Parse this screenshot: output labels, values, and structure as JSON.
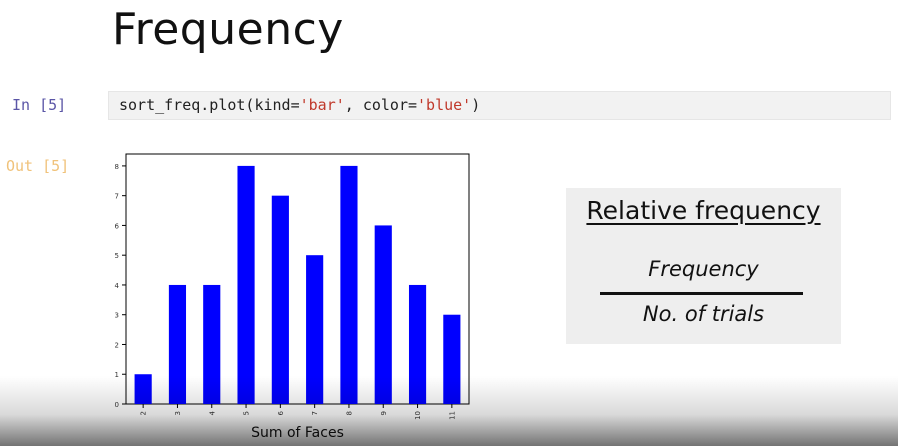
{
  "slide": {
    "title": "Frequency"
  },
  "notebook": {
    "in_prompt": "In [5]",
    "out_prompt": "Out [5]",
    "code": {
      "prefix": "sort_freq.plot(kind=",
      "arg1": "'bar'",
      "mid": ", color=",
      "arg2": "'blue'",
      "suffix": ")"
    }
  },
  "chart_data": {
    "type": "bar",
    "categories": [
      "2",
      "3",
      "4",
      "5",
      "6",
      "7",
      "8",
      "9",
      "10",
      "11"
    ],
    "values": [
      1,
      4,
      4,
      8,
      7,
      5,
      8,
      6,
      4,
      3
    ],
    "yticks": [
      "0",
      "1",
      "2",
      "3",
      "4",
      "5",
      "6",
      "7",
      "8"
    ],
    "xlabel": "Sum of Faces",
    "ylabel": "",
    "ylim": [
      0,
      8.4
    ],
    "bar_color": "#0000ff",
    "grid": false,
    "legend": false
  },
  "formula": {
    "title": "Relative frequency",
    "numerator": "Frequency",
    "denominator": "No. of trials"
  }
}
